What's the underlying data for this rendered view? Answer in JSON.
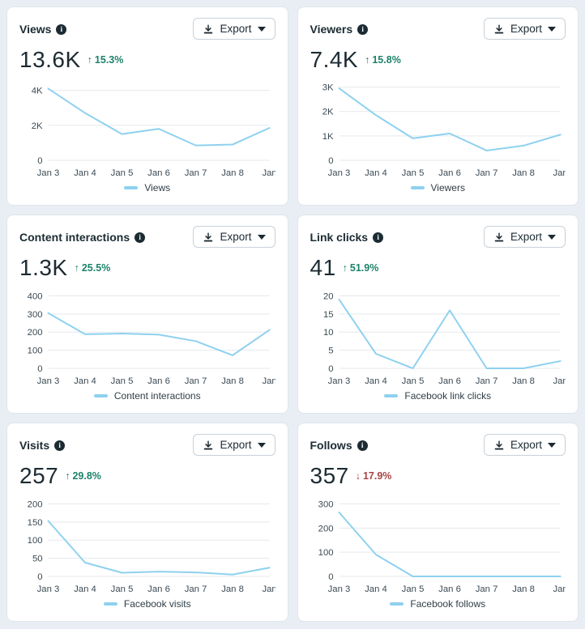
{
  "export_label": "Export",
  "info_glyph": "i",
  "colors": {
    "page_bg": "#e8eef4",
    "card_bg": "#ffffff",
    "title": "#1c2b33",
    "grid": "#e5e9ed",
    "axis_text": "#3b4a54",
    "line": "#8ed1ef",
    "positive": "#1d8269",
    "negative": "#a94444"
  },
  "chart_data": [
    {
      "type": "line",
      "title": "Views",
      "value": "13.6K",
      "direction": "up",
      "delta_arrow": "↑",
      "delta": "15.3%",
      "legend": "Views",
      "x": [
        "Jan 3",
        "Jan 4",
        "Jan 5",
        "Jan 6",
        "Jan 7",
        "Jan 8",
        "Jan"
      ],
      "series": [
        {
          "name": "Views",
          "values": [
            4100,
            2700,
            1500,
            1800,
            850,
            900,
            1850
          ]
        }
      ],
      "yticks": [
        0,
        2000,
        4000
      ],
      "ytick_labels": [
        "0",
        "2K",
        "4K"
      ],
      "ylim": [
        0,
        4350
      ]
    },
    {
      "type": "line",
      "title": "Viewers",
      "value": "7.4K",
      "direction": "up",
      "delta_arrow": "↑",
      "delta": "15.8%",
      "legend": "Viewers",
      "x": [
        "Jan 3",
        "Jan 4",
        "Jan 5",
        "Jan 6",
        "Jan 7",
        "Jan 8",
        "Jan"
      ],
      "series": [
        {
          "name": "Viewers",
          "values": [
            2950,
            1850,
            900,
            1100,
            400,
            600,
            1050
          ]
        }
      ],
      "yticks": [
        0,
        1000,
        2000,
        3000
      ],
      "ytick_labels": [
        "0",
        "1K",
        "2K",
        "3K"
      ],
      "ylim": [
        0,
        3120
      ]
    },
    {
      "type": "line",
      "title": "Content interactions",
      "value": "1.3K",
      "direction": "up",
      "delta_arrow": "↑",
      "delta": "25.5%",
      "legend": "Content interactions",
      "x": [
        "Jan 3",
        "Jan 4",
        "Jan 5",
        "Jan 6",
        "Jan 7",
        "Jan 8",
        "Jan"
      ],
      "series": [
        {
          "name": "Content interactions",
          "values": [
            305,
            188,
            192,
            186,
            150,
            72,
            212
          ]
        }
      ],
      "yticks": [
        0,
        100,
        200,
        300,
        400
      ],
      "ytick_labels": [
        "0",
        "100",
        "200",
        "300",
        "400"
      ],
      "ylim": [
        0,
        420
      ]
    },
    {
      "type": "line",
      "title": "Link clicks",
      "value": "41",
      "direction": "up",
      "delta_arrow": "↑",
      "delta": "51.9%",
      "legend": "Facebook link clicks",
      "x": [
        "Jan 3",
        "Jan 4",
        "Jan 5",
        "Jan 6",
        "Jan 7",
        "Jan 8",
        "Jan"
      ],
      "series": [
        {
          "name": "Facebook link clicks",
          "values": [
            19,
            4,
            0,
            16,
            0,
            0,
            2
          ]
        }
      ],
      "yticks": [
        0,
        5,
        10,
        15,
        20
      ],
      "ytick_labels": [
        "0",
        "5",
        "10",
        "15",
        "20"
      ],
      "ylim": [
        0,
        21
      ]
    },
    {
      "type": "line",
      "title": "Visits",
      "value": "257",
      "direction": "up",
      "delta_arrow": "↑",
      "delta": "29.8%",
      "legend": "Facebook visits",
      "x": [
        "Jan 3",
        "Jan 4",
        "Jan 5",
        "Jan 6",
        "Jan 7",
        "Jan 8",
        "Jan"
      ],
      "series": [
        {
          "name": "Facebook visits",
          "values": [
            153,
            38,
            10,
            13,
            11,
            5,
            24
          ]
        }
      ],
      "yticks": [
        0,
        50,
        100,
        150,
        200
      ],
      "ytick_labels": [
        "0",
        "50",
        "100",
        "150",
        "200"
      ],
      "ylim": [
        0,
        210
      ]
    },
    {
      "type": "line",
      "title": "Follows",
      "value": "357",
      "direction": "down",
      "delta_arrow": "↓",
      "delta": "17.9%",
      "legend": "Facebook follows",
      "x": [
        "Jan 3",
        "Jan 4",
        "Jan 5",
        "Jan 6",
        "Jan 7",
        "Jan 8",
        "Jan"
      ],
      "series": [
        {
          "name": "Facebook follows",
          "values": [
            265,
            90,
            0,
            0,
            0,
            0,
            0
          ]
        }
      ],
      "yticks": [
        0,
        100,
        200,
        300
      ],
      "ytick_labels": [
        "0",
        "100",
        "200",
        "300"
      ],
      "ylim": [
        0,
        315
      ]
    }
  ]
}
